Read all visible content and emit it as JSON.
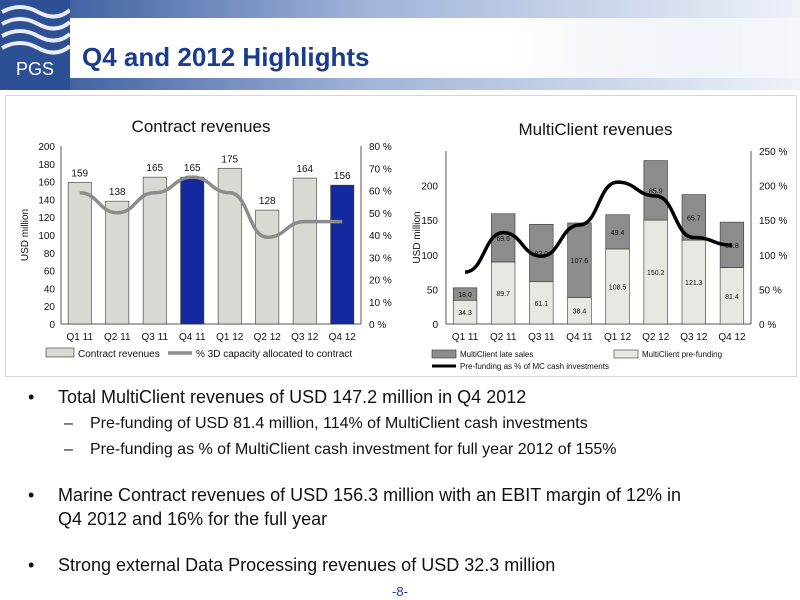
{
  "header": {
    "title": "Q4 and 2012 Highlights",
    "logo_text": "PGS"
  },
  "chart_data": [
    {
      "type": "bar",
      "title": "Contract revenues",
      "ylabel": "USD million",
      "ylim": [
        0,
        200
      ],
      "yticks": [
        "0",
        "20",
        "40",
        "60",
        "80",
        "100",
        "120",
        "140",
        "160",
        "180",
        "200"
      ],
      "y2ticks": [
        "0 %",
        "10 %",
        "20 %",
        "30 %",
        "40 %",
        "50 %",
        "60 %",
        "70 %",
        "80 %"
      ],
      "y2lim": [
        0,
        80
      ],
      "categories": [
        "Q1 11",
        "Q2 11",
        "Q3 11",
        "Q4 11",
        "Q1 12",
        "Q2 12",
        "Q3 12",
        "Q4 12"
      ],
      "series": [
        {
          "name": "Contract revenues",
          "values": [
            159,
            138,
            165,
            165,
            175,
            128,
            164,
            156
          ],
          "labels": [
            "159",
            "138",
            "165",
            "165",
            "175",
            "128",
            "164",
            "156"
          ]
        },
        {
          "name": "% 3D capacity allocated to contract",
          "type": "line",
          "values": [
            59,
            50,
            59,
            66,
            59,
            39,
            46,
            46
          ]
        }
      ],
      "colors": {
        "bar": "#d9d9d3",
        "highlight": "#1428a0",
        "line": "#8c8c8c"
      },
      "highlight_index": [
        3,
        7
      ],
      "legend": "bottom"
    },
    {
      "type": "bar",
      "title": "MultiClient revenues",
      "ylabel": "USD million",
      "ylim": [
        0,
        250
      ],
      "yticks": [
        "0",
        "50",
        "100",
        "150",
        "200"
      ],
      "y2ticks": [
        "0 %",
        "50 %",
        "100 %",
        "150 %",
        "200 %",
        "250 %"
      ],
      "y2lim": [
        0,
        250
      ],
      "categories": [
        "Q1 11",
        "Q2 11",
        "Q3 11",
        "Q4 11",
        "Q1 12",
        "Q2 12",
        "Q3 12",
        "Q4 12"
      ],
      "series": [
        {
          "name": "MultiClient pre-funding",
          "values": [
            34.3,
            89.7,
            61.1,
            38.4,
            108.5,
            150.2,
            121.3,
            81.4
          ],
          "labels": [
            "34.3",
            "89.7",
            "61.1",
            "38.4",
            "108.5",
            "150.2",
            "121.3",
            "81.4"
          ]
        },
        {
          "name": "MultiClient late sales",
          "values": [
            18.0,
            69.6,
            83.0,
            107.6,
            49.4,
            85.9,
            65.7,
            65.8
          ],
          "labels": [
            "18.0",
            "69.6",
            "83.0",
            "107.6",
            "49.4",
            "85.9",
            "65.7",
            "65.8"
          ]
        },
        {
          "name": "Pre-funding as % of MC cash investments",
          "type": "line",
          "values": [
            75,
            132,
            98,
            143,
            205,
            185,
            125,
            114
          ]
        }
      ],
      "colors": {
        "prefunding": "#e8e8e2",
        "late": "#8c8c8c",
        "line": "#000000"
      },
      "legend": "bottom"
    }
  ],
  "bullets": [
    {
      "text": "Total MultiClient revenues of USD 147.2 million in Q4 2012",
      "sub": [
        "Pre-funding of USD 81.4 million, 114% of MultiClient cash investments",
        "Pre-funding as % of MultiClient cash investment for full year 2012 of 155%"
      ]
    },
    {
      "text": "Marine Contract revenues of USD 156.3 million with an EBIT margin of 12% in",
      "text2": "Q4 2012 and 16% for the full year"
    },
    {
      "text": "Strong external Data Processing revenues of USD 32.3 million"
    }
  ],
  "bullet_char": "•",
  "sub_bullet_char": "–",
  "page_number": "-8-"
}
